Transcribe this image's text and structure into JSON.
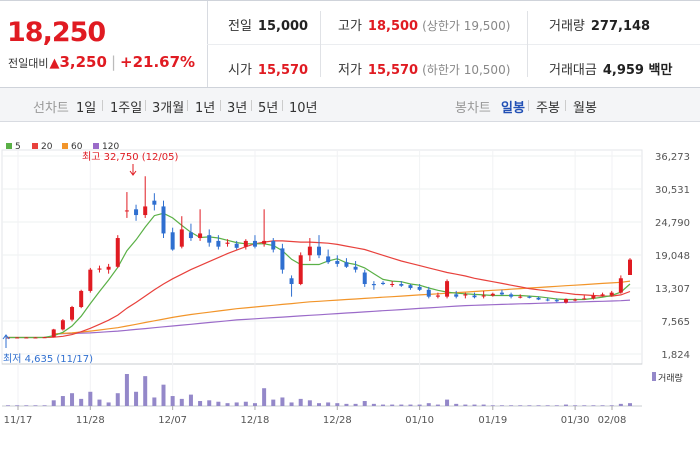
{
  "summary": {
    "price": "18,250",
    "change_label": "전일대비",
    "change_arrow": "▲",
    "change_value": "3,250",
    "change_pct": "+21.67%",
    "prev_close_label": "전일",
    "prev_close": "15,000",
    "high_label": "고가",
    "high": "18,500",
    "upper_limit": "(상한가 19,500)",
    "volume_label": "거래량",
    "volume": "277,148",
    "open_label": "시가",
    "open": "15,570",
    "low_label": "저가",
    "low": "15,570",
    "lower_limit": "(하한가 10,500)",
    "turnover_label": "거래대금",
    "turnover": "4,959 백만"
  },
  "toolbar": {
    "line_chart_label": "선차트",
    "periods": [
      "1일",
      "1주일",
      "3개월",
      "1년",
      "3년",
      "5년",
      "10년"
    ],
    "candle_chart_label": "봉차트",
    "candle_periods": [
      "일봉",
      "주봉",
      "월봉"
    ],
    "active_candle": "일봉"
  },
  "colors": {
    "up": "#e01b22",
    "down": "#2f6fd0",
    "ma5": "#5ab046",
    "ma20": "#e8413c",
    "ma60": "#f2952a",
    "ma120": "#9b6bc9",
    "volume": "#9488c9"
  },
  "chart_data": {
    "type": "candlestick",
    "legend": [
      {
        "name": "5",
        "color": "#5ab046"
      },
      {
        "name": "20",
        "color": "#e8413c"
      },
      {
        "name": "60",
        "color": "#f2952a"
      },
      {
        "name": "120",
        "color": "#9b6bc9"
      }
    ],
    "y_ticks": [
      "36,273",
      "30,531",
      "24,790",
      "19,048",
      "13,307",
      "7,565",
      "1,824"
    ],
    "y_range": [
      1824,
      36273
    ],
    "x_ticks": [
      "11/17",
      "11/28",
      "12/07",
      "12/18",
      "12/28",
      "01/10",
      "01/19",
      "01/30",
      "02/08"
    ],
    "max_annotation": "최고 32,750 (12/05)",
    "min_annotation": "최저 4,635 (11/17)",
    "volume_legend": "거래량",
    "candles": [
      {
        "o": 4635,
        "h": 4700,
        "l": 4635,
        "c": 4700,
        "v": 1
      },
      {
        "o": 4700,
        "h": 4750,
        "l": 4650,
        "c": 4700,
        "v": 1
      },
      {
        "o": 4700,
        "h": 4750,
        "l": 4650,
        "c": 4700,
        "v": 1
      },
      {
        "o": 4700,
        "h": 4750,
        "l": 4650,
        "c": 4700,
        "v": 1
      },
      {
        "o": 4700,
        "h": 4800,
        "l": 4650,
        "c": 4750,
        "v": 1
      },
      {
        "o": 4750,
        "h": 6200,
        "l": 4700,
        "c": 6100,
        "v": 8
      },
      {
        "o": 6100,
        "h": 7900,
        "l": 5900,
        "c": 7700,
        "v": 14
      },
      {
        "o": 7800,
        "h": 10200,
        "l": 7500,
        "c": 10000,
        "v": 18
      },
      {
        "o": 10000,
        "h": 13000,
        "l": 9800,
        "c": 12800,
        "v": 10
      },
      {
        "o": 12800,
        "h": 16800,
        "l": 12500,
        "c": 16500,
        "v": 20
      },
      {
        "o": 16500,
        "h": 17200,
        "l": 16000,
        "c": 16700,
        "v": 9
      },
      {
        "o": 16500,
        "h": 17500,
        "l": 15800,
        "c": 17000,
        "v": 5
      },
      {
        "o": 17000,
        "h": 22500,
        "l": 16800,
        "c": 22000,
        "v": 18
      },
      {
        "o": 26800,
        "h": 30000,
        "l": 25500,
        "c": 26800,
        "v": 45
      },
      {
        "o": 27000,
        "h": 27800,
        "l": 25000,
        "c": 26000,
        "v": 20
      },
      {
        "o": 26000,
        "h": 32750,
        "l": 25500,
        "c": 27500,
        "v": 42
      },
      {
        "o": 28500,
        "h": 29800,
        "l": 26800,
        "c": 27800,
        "v": 12
      },
      {
        "o": 27500,
        "h": 28500,
        "l": 22000,
        "c": 22800,
        "v": 30
      },
      {
        "o": 23000,
        "h": 23800,
        "l": 19800,
        "c": 20000,
        "v": 14
      },
      {
        "o": 20500,
        "h": 25800,
        "l": 20200,
        "c": 23500,
        "v": 10
      },
      {
        "o": 23000,
        "h": 24500,
        "l": 21500,
        "c": 22000,
        "v": 16
      },
      {
        "o": 22000,
        "h": 27000,
        "l": 21500,
        "c": 22800,
        "v": 7
      },
      {
        "o": 22500,
        "h": 23500,
        "l": 20500,
        "c": 21200,
        "v": 8
      },
      {
        "o": 21500,
        "h": 22500,
        "l": 20000,
        "c": 20500,
        "v": 6
      },
      {
        "o": 21000,
        "h": 21800,
        "l": 20500,
        "c": 21200,
        "v": 4
      },
      {
        "o": 21000,
        "h": 21500,
        "l": 20000,
        "c": 20300,
        "v": 5
      },
      {
        "o": 20500,
        "h": 21800,
        "l": 20000,
        "c": 21500,
        "v": 6
      },
      {
        "o": 21500,
        "h": 22500,
        "l": 20200,
        "c": 20500,
        "v": 4
      },
      {
        "o": 21000,
        "h": 27000,
        "l": 20500,
        "c": 21500,
        "v": 25
      },
      {
        "o": 21500,
        "h": 22000,
        "l": 19500,
        "c": 20000,
        "v": 9
      },
      {
        "o": 20200,
        "h": 21000,
        "l": 15800,
        "c": 16500,
        "v": 12
      },
      {
        "o": 15000,
        "h": 15500,
        "l": 11800,
        "c": 14000,
        "v": 5
      },
      {
        "o": 14000,
        "h": 19500,
        "l": 13800,
        "c": 19000,
        "v": 10
      },
      {
        "o": 19000,
        "h": 22000,
        "l": 18000,
        "c": 20500,
        "v": 8
      },
      {
        "o": 20500,
        "h": 22500,
        "l": 18500,
        "c": 19000,
        "v": 4
      },
      {
        "o": 18800,
        "h": 20000,
        "l": 17500,
        "c": 17800,
        "v": 5
      },
      {
        "o": 18000,
        "h": 19000,
        "l": 17000,
        "c": 17500,
        "v": 4
      },
      {
        "o": 17800,
        "h": 18500,
        "l": 16800,
        "c": 17000,
        "v": 3
      },
      {
        "o": 17000,
        "h": 18000,
        "l": 16000,
        "c": 16500,
        "v": 3
      },
      {
        "o": 16000,
        "h": 16500,
        "l": 13500,
        "c": 14000,
        "v": 7
      },
      {
        "o": 14000,
        "h": 14500,
        "l": 13000,
        "c": 13800,
        "v": 3
      },
      {
        "o": 14200,
        "h": 14500,
        "l": 13800,
        "c": 14000,
        "v": 2
      },
      {
        "o": 14000,
        "h": 14500,
        "l": 13500,
        "c": 14000,
        "v": 2
      },
      {
        "o": 14000,
        "h": 14500,
        "l": 13500,
        "c": 13700,
        "v": 2
      },
      {
        "o": 13800,
        "h": 14000,
        "l": 13000,
        "c": 13300,
        "v": 2
      },
      {
        "o": 13500,
        "h": 14000,
        "l": 12800,
        "c": 13000,
        "v": 2
      },
      {
        "o": 13000,
        "h": 13500,
        "l": 11500,
        "c": 11800,
        "v": 4
      },
      {
        "o": 11800,
        "h": 12500,
        "l": 11500,
        "c": 12000,
        "v": 2
      },
      {
        "o": 11800,
        "h": 14800,
        "l": 11500,
        "c": 14500,
        "v": 9
      },
      {
        "o": 12200,
        "h": 12800,
        "l": 11500,
        "c": 11800,
        "v": 3
      },
      {
        "o": 12000,
        "h": 12500,
        "l": 11500,
        "c": 12200,
        "v": 2
      },
      {
        "o": 12000,
        "h": 12500,
        "l": 11500,
        "c": 11700,
        "v": 2
      },
      {
        "o": 12000,
        "h": 12800,
        "l": 11500,
        "c": 12000,
        "v": 2
      },
      {
        "o": 12000,
        "h": 12500,
        "l": 11800,
        "c": 12300,
        "v": 1
      },
      {
        "o": 12500,
        "h": 13000,
        "l": 12000,
        "c": 12200,
        "v": 1
      },
      {
        "o": 12200,
        "h": 12500,
        "l": 11500,
        "c": 11800,
        "v": 1
      },
      {
        "o": 11800,
        "h": 12200,
        "l": 11500,
        "c": 11800,
        "v": 1
      },
      {
        "o": 11800,
        "h": 12000,
        "l": 11500,
        "c": 11600,
        "v": 1
      },
      {
        "o": 11600,
        "h": 11800,
        "l": 11200,
        "c": 11300,
        "v": 1
      },
      {
        "o": 11300,
        "h": 11600,
        "l": 11000,
        "c": 11200,
        "v": 1
      },
      {
        "o": 11200,
        "h": 11500,
        "l": 10800,
        "c": 11000,
        "v": 1
      },
      {
        "o": 10800,
        "h": 11500,
        "l": 10600,
        "c": 11400,
        "v": 2
      },
      {
        "o": 11200,
        "h": 11500,
        "l": 11000,
        "c": 11300,
        "v": 1
      },
      {
        "o": 11500,
        "h": 12000,
        "l": 11300,
        "c": 11500,
        "v": 1
      },
      {
        "o": 11500,
        "h": 12500,
        "l": 11300,
        "c": 12000,
        "v": 1
      },
      {
        "o": 12000,
        "h": 12500,
        "l": 11800,
        "c": 12200,
        "v": 1
      },
      {
        "o": 12000,
        "h": 12800,
        "l": 11800,
        "c": 12500,
        "v": 1
      },
      {
        "o": 12500,
        "h": 15500,
        "l": 12300,
        "c": 15000,
        "v": 3
      },
      {
        "o": 15570,
        "h": 18500,
        "l": 15570,
        "c": 18250,
        "v": 4
      }
    ],
    "ma5": [
      4700,
      4700,
      4700,
      4700,
      4710,
      5000,
      5600,
      6700,
      8400,
      10600,
      12700,
      14700,
      16900,
      19800,
      21700,
      23900,
      25900,
      26300,
      25500,
      24200,
      23000,
      22100,
      22200,
      22000,
      21600,
      21200,
      21000,
      21000,
      21000,
      20700,
      19800,
      18300,
      17400,
      17400,
      17400,
      18000,
      18400,
      17700,
      17400,
      16800,
      15800,
      14800,
      14500,
      14400,
      14000,
      13800,
      13300,
      12900,
      12600,
      12400,
      12300,
      12200,
      12100,
      12000,
      12000,
      12000,
      12000,
      11900,
      11800,
      11600,
      11400,
      11300,
      11300,
      11300,
      11500,
      11700,
      12000,
      12600,
      14000
    ],
    "ma20": [
      4700,
      4700,
      4700,
      4700,
      4700,
      4750,
      4900,
      5200,
      5700,
      6300,
      7000,
      7700,
      8600,
      9800,
      10800,
      11900,
      13000,
      14000,
      14900,
      15700,
      16500,
      17200,
      17900,
      18600,
      19300,
      19900,
      20500,
      21000,
      21300,
      21500,
      21500,
      21400,
      21300,
      21300,
      21200,
      21100,
      20900,
      20600,
      20300,
      20000,
      19500,
      19000,
      18500,
      18000,
      17600,
      17200,
      16800,
      16400,
      16000,
      15700,
      15400,
      15000,
      14700,
      14400,
      14100,
      13800,
      13500,
      13200,
      13000,
      12800,
      12600,
      12400,
      12200,
      12100,
      12000,
      11900,
      11900,
      12100,
      12700
    ],
    "ma60": [
      null,
      null,
      null,
      null,
      null,
      5300,
      5400,
      5500,
      5650,
      5800,
      6000,
      6200,
      6400,
      6700,
      7000,
      7300,
      7600,
      7900,
      8200,
      8450,
      8700,
      8900,
      9100,
      9300,
      9500,
      9700,
      9850,
      10000,
      10150,
      10300,
      10450,
      10600,
      10750,
      10900,
      11000,
      11100,
      11200,
      11300,
      11400,
      11500,
      11600,
      11700,
      11800,
      11900,
      12000,
      12100,
      12200,
      12300,
      12400,
      12500,
      12600,
      12700,
      12800,
      12900,
      13000,
      13100,
      13200,
      13300,
      13400,
      13500,
      13600,
      13700,
      13800,
      13900,
      14000,
      14100,
      14200,
      14300,
      14500
    ],
    "ma120": [
      null,
      null,
      null,
      null,
      null,
      5300,
      5350,
      5400,
      5450,
      5500,
      5600,
      5700,
      5800,
      5950,
      6100,
      6250,
      6400,
      6550,
      6700,
      6850,
      7000,
      7150,
      7300,
      7450,
      7600,
      7750,
      7850,
      7950,
      8050,
      8150,
      8250,
      8350,
      8450,
      8550,
      8650,
      8750,
      8850,
      8950,
      9050,
      9150,
      9250,
      9350,
      9450,
      9550,
      9650,
      9750,
      9850,
      9950,
      10050,
      10150,
      10250,
      10300,
      10350,
      10400,
      10450,
      10500,
      10550,
      10600,
      10650,
      10700,
      10750,
      10800,
      10850,
      10900,
      10950,
      11000,
      11050,
      11100,
      11200
    ]
  }
}
